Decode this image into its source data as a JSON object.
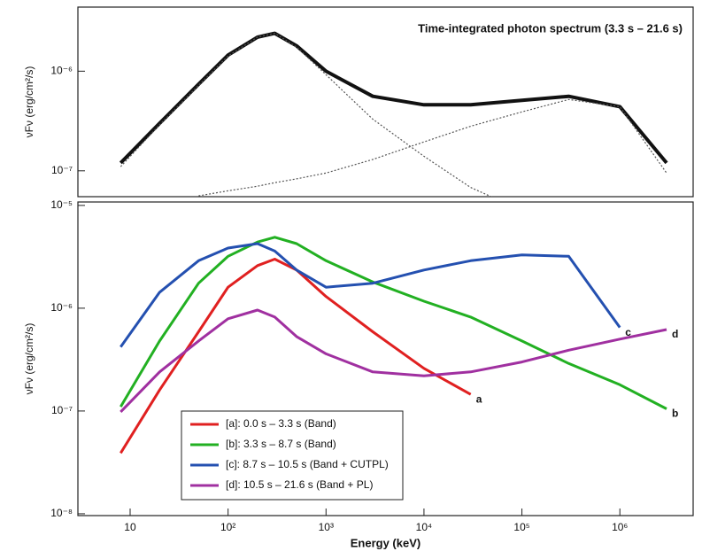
{
  "chart_data": [
    {
      "type": "line",
      "title": "Time-integrated photon spectrum (3.3 s – 21.6 s)",
      "y_label": "νFν (erg/cm²/s)",
      "log_x": true,
      "log_y": true,
      "grid": false,
      "xlim": [
        2.93,
        5600000
      ],
      "ylim": [
        5.5e-08,
        4.4e-06
      ],
      "yticks": [
        {
          "value": 1e-06,
          "label": "10⁻⁶"
        },
        {
          "value": 1e-07,
          "label": "10⁻⁷"
        }
      ],
      "x": [
        8,
        20,
        50,
        100,
        200,
        300,
        500,
        1000,
        3000,
        10000,
        30000,
        100000,
        300000,
        1000000,
        3000000
      ],
      "series": [
        {
          "color": "#111111",
          "style": "solid",
          "values": [
            1.2e-07,
            3e-07,
            7.4e-07,
            1.45e-06,
            2.2e-06,
            2.4e-06,
            1.8e-06,
            1e-06,
            5.6e-07,
            4.6e-07,
            4.6e-07,
            5.1e-07,
            5.6e-07,
            4.4e-07,
            1.2e-07
          ]
        },
        {
          "color": "#555555",
          "style": "dotted",
          "values": [
            1.1e-07,
            2.9e-07,
            7.2e-07,
            1.42e-06,
            2.2e-06,
            2.4e-06,
            1.75e-06,
            9.2e-07,
            3.3e-07,
            1.4e-07,
            6.8e-08,
            4e-08,
            null,
            null,
            null
          ]
        },
        {
          "color": "#555555",
          "style": "dotted",
          "values": [
            null,
            null,
            5.6e-08,
            6.3e-08,
            7e-08,
            7.6e-08,
            8.3e-08,
            9.5e-08,
            1.3e-07,
            1.95e-07,
            2.8e-07,
            3.9e-07,
            5.2e-07,
            4.4e-07,
            9.5e-08
          ]
        }
      ]
    },
    {
      "type": "line",
      "y_label": "νFν (erg/cm²/s)",
      "x_label": "Energy (keV)",
      "log_x": true,
      "log_y": true,
      "grid": false,
      "legend": "lower left",
      "xlim": [
        2.93,
        5600000
      ],
      "ylim": [
        9.6e-09,
        1.08e-05
      ],
      "xticks": [
        10,
        {
          "value": 100,
          "label": "10²"
        },
        {
          "value": 1000,
          "label": "10³"
        },
        {
          "value": 10000,
          "label": "10⁴"
        },
        {
          "value": 100000,
          "label": "10⁵"
        },
        {
          "value": 1000000,
          "label": "10⁶"
        }
      ],
      "yticks": [
        {
          "value": 1e-05,
          "label": "10⁻⁵"
        },
        {
          "value": 1e-06,
          "label": "10⁻⁶"
        },
        {
          "value": 1e-07,
          "label": "10⁻⁷"
        },
        {
          "value": 1e-08,
          "label": "10⁻⁸"
        }
      ],
      "x": [
        8,
        20,
        50,
        100,
        200,
        300,
        500,
        1000,
        3000,
        10000,
        30000,
        100000,
        300000,
        1000000,
        3000000
      ],
      "series": [
        {
          "name": "[a]: 0.0 s – 3.3 s (Band)",
          "end_label": "a",
          "color": "#e02020",
          "values": [
            3.9e-08,
            1.6e-07,
            5.9e-07,
            1.6e-06,
            2.6e-06,
            3e-06,
            2.35e-06,
            1.3e-06,
            5.9e-07,
            2.6e-07,
            1.45e-07,
            null,
            null,
            null,
            null
          ]
        },
        {
          "name": "[b]: 3.3 s – 8.7 s (Band)",
          "end_label": "b",
          "color": "#22b022",
          "values": [
            1.1e-07,
            4.8e-07,
            1.75e-06,
            3.2e-06,
            4.4e-06,
            4.9e-06,
            4.25e-06,
            2.9e-06,
            1.8e-06,
            1.17e-06,
            8.2e-07,
            4.8e-07,
            2.9e-07,
            1.8e-07,
            1.05e-07
          ]
        },
        {
          "name": "[c]: 8.7 s – 10.5 s (Band + CUTPL)",
          "end_label": "c",
          "color": "#2450b0",
          "values": [
            4.2e-07,
            1.43e-06,
            2.9e-06,
            3.85e-06,
            4.25e-06,
            3.6e-06,
            2.35e-06,
            1.6e-06,
            1.75e-06,
            2.35e-06,
            2.9e-06,
            3.3e-06,
            3.2e-06,
            6.5e-07,
            null
          ]
        },
        {
          "name": "[d]: 10.5 s – 21.6 s (Band + PL)",
          "end_label": "d",
          "color": "#a030a0",
          "values": [
            9.8e-08,
            2.4e-07,
            4.8e-07,
            7.9e-07,
            9.6e-07,
            8.2e-07,
            5.3e-07,
            3.6e-07,
            2.4e-07,
            2.2e-07,
            2.4e-07,
            3e-07,
            3.9e-07,
            5e-07,
            6.2e-07
          ]
        }
      ]
    }
  ]
}
